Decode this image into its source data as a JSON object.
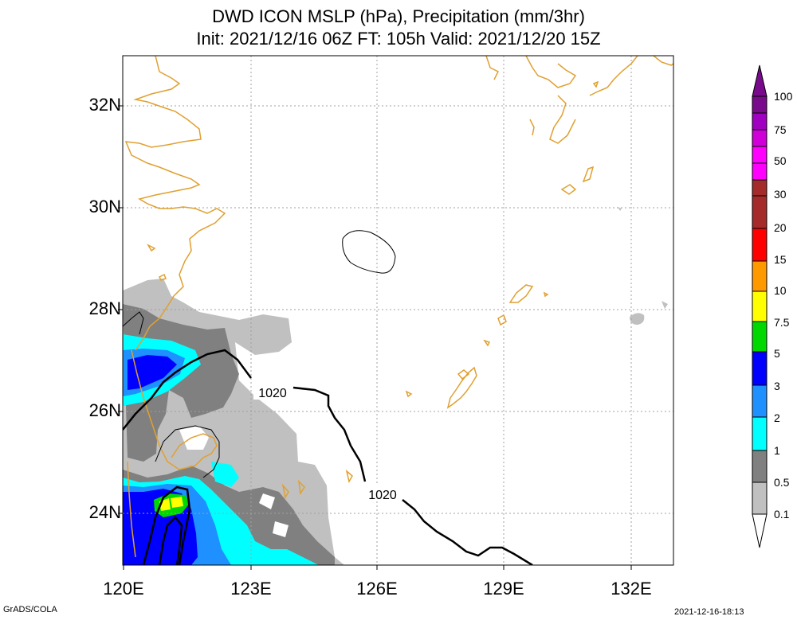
{
  "title_line1": "DWD ICON MSLP (hPa), Precipitation (mm/3hr)",
  "title_line2": "Init: 2021/12/16 06Z  FT: 105h  Valid: 2021/12/20 15Z",
  "lat_labels": [
    "32N",
    "30N",
    "28N",
    "26N",
    "24N"
  ],
  "lon_labels": [
    "120E",
    "123E",
    "126E",
    "129E",
    "132E"
  ],
  "contour_labels": [
    "1020",
    "1020"
  ],
  "colorbar": {
    "labels": [
      "100",
      "75",
      "50",
      "30",
      "20",
      "15",
      "10",
      "7.5",
      "5",
      "3",
      "2",
      "1",
      "0.5",
      "0.1"
    ],
    "colors": [
      "#7a0a8c",
      "#a000c0",
      "#d000d8",
      "#ff00ff",
      "#a52a2a",
      "#ff0000",
      "#ff9900",
      "#ffff00",
      "#00d800",
      "#0000ff",
      "#1e90ff",
      "#00ffff",
      "#808080",
      "#c0c0c0"
    ]
  },
  "colors": {
    "coastline": "#e0a030",
    "grid": "#a0a0a0",
    "isobar": "#000000"
  },
  "footer_left": "GrADS/COLA",
  "footer_right": "2021-12-16-18:13"
}
